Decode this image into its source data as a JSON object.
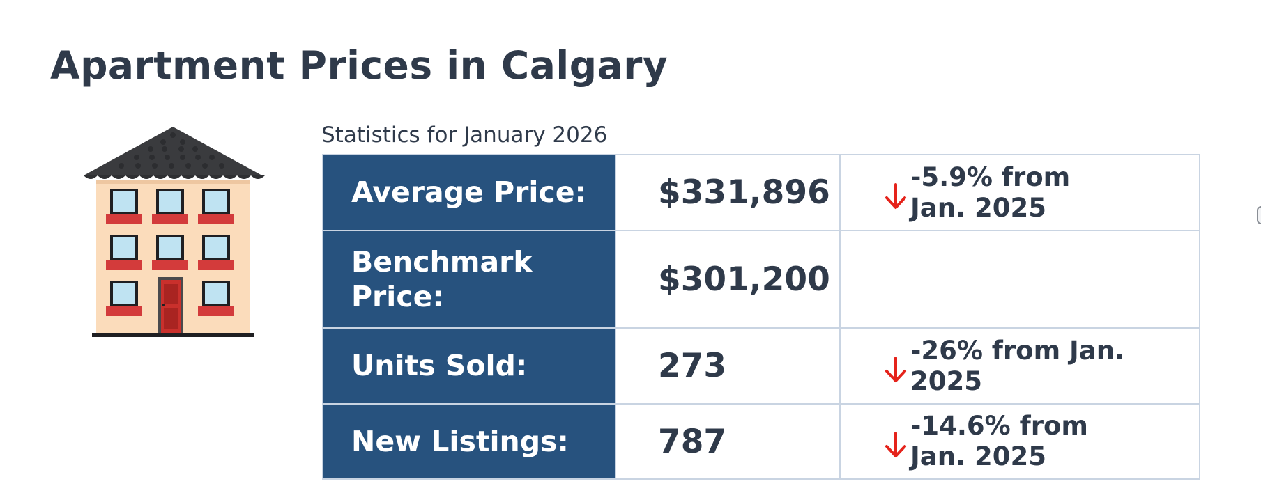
{
  "page": {
    "title": "Apartment Prices in Calgary"
  },
  "illustration": {
    "icon": "apartment-building-icon"
  },
  "stats": {
    "caption": "Statistics for January 2026",
    "rows": [
      {
        "label": "Average Price:",
        "value": "$331,896",
        "change": "-5.9% from Jan. 2025",
        "trend": "down"
      },
      {
        "label": "Benchmark Price:",
        "value": "$301,200",
        "change": "",
        "trend": ""
      },
      {
        "label": "Units Sold:",
        "value": "273",
        "change": "-26% from Jan. 2025",
        "trend": "down"
      },
      {
        "label": "New Listings:",
        "value": "787",
        "change": "-14.6% from Jan. 2025",
        "trend": "down"
      }
    ]
  },
  "colors": {
    "label_bg": "#27527e",
    "down_arrow": "#e5231b",
    "text": "#2f3a4a"
  }
}
